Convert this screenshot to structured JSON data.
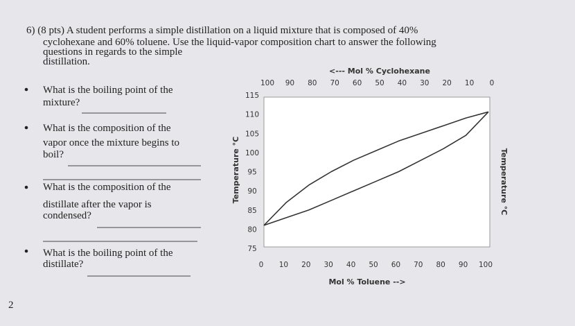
{
  "question": {
    "lines": [
      "6) (8 pts) A student performs a simple distillation on a liquid mixture that is composed of 40%",
      "cyclohexane and 60% toluene.  Use the liquid-vapor composition chart to answer the following",
      "questions in regards to the simple",
      "distillation."
    ]
  },
  "bullets": [
    {
      "lines": [
        "What is the boiling point of the",
        "mixture?"
      ]
    },
    {
      "lines": [
        "What is the composition of the",
        "vapor once the mixture begins to",
        "boil?"
      ]
    },
    {
      "lines": [
        "What is the composition of the",
        "distillate after the vapor is",
        "condensed?"
      ]
    },
    {
      "lines": [
        "What is the boiling point of the",
        "distillate?"
      ]
    }
  ],
  "page_number": "2",
  "chart_data": {
    "type": "line",
    "xlabel": "Mol % Toluene   -->",
    "x2label": "<---  Mol % Cyclohexane",
    "ylabel": "Temperature °C",
    "y2label": "Temperature °C",
    "x": [
      0,
      10,
      20,
      30,
      40,
      50,
      60,
      70,
      80,
      90,
      100
    ],
    "xlim": [
      0,
      100
    ],
    "xticks": [
      0,
      10,
      20,
      30,
      40,
      50,
      60,
      70,
      80,
      90,
      100
    ],
    "x2lim": [
      100,
      0
    ],
    "x2ticks": [
      100,
      90,
      80,
      70,
      60,
      50,
      40,
      30,
      20,
      10,
      0
    ],
    "ylim": [
      75,
      115
    ],
    "yticks": [
      75,
      80,
      85,
      90,
      95,
      100,
      105,
      110,
      115
    ],
    "series": [
      {
        "color": "#333333",
        "values": [
          81,
          83,
          85,
          87.5,
          90,
          92.5,
          95,
          98,
          101,
          104.5,
          110.6
        ]
      },
      {
        "color": "#333333",
        "values": [
          81,
          87,
          91.5,
          95,
          98,
          100.5,
          103,
          105,
          107,
          109,
          110.6
        ]
      }
    ]
  }
}
